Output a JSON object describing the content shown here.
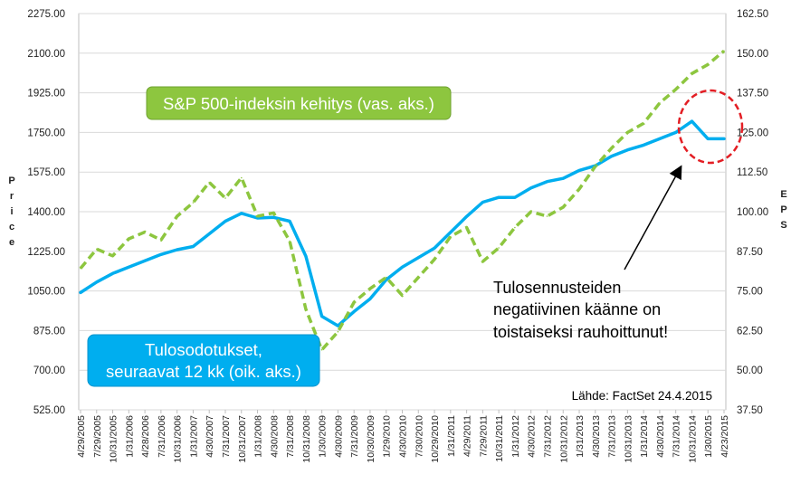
{
  "chart_data": {
    "type": "line",
    "title": "",
    "ylabel_left": "Price",
    "ylabel_right": "EPS",
    "ylim_left": [
      525,
      2275
    ],
    "ylim_right": [
      37.5,
      162.5
    ],
    "yticks_left": [
      "525.00",
      "700.00",
      "875.00",
      "1050.00",
      "1225.00",
      "1400.00",
      "1575.00",
      "1750.00",
      "1925.00",
      "2100.00",
      "2275.00"
    ],
    "yticks_right": [
      "37.50",
      "50.00",
      "62.50",
      "75.00",
      "87.50",
      "100.00",
      "112.50",
      "125.00",
      "137.50",
      "150.00",
      "162.50"
    ],
    "categories": [
      "4/29/2005",
      "7/29/2005",
      "10/31/2005",
      "1/31/2006",
      "4/28/2006",
      "7/31/2006",
      "10/31/2006",
      "1/31/2007",
      "4/30/2007",
      "7/31/2007",
      "10/31/2007",
      "1/31/2008",
      "4/30/2008",
      "7/31/2008",
      "10/31/2008",
      "1/30/2009",
      "4/30/2009",
      "7/31/2009",
      "10/30/2009",
      "1/29/2010",
      "4/30/2010",
      "7/30/2010",
      "10/29/2010",
      "1/31/2011",
      "4/29/2011",
      "7/29/2011",
      "10/31/2011",
      "1/31/2012",
      "4/30/2012",
      "7/31/2012",
      "10/31/2012",
      "1/31/2013",
      "4/30/2013",
      "7/31/2013",
      "10/31/2013",
      "1/31/2014",
      "4/30/2014",
      "7/31/2014",
      "10/31/2014",
      "1/30/2015",
      "4/23/2015"
    ],
    "series": [
      {
        "name": "S&P 500-indeksin kehitys (vas. aks.)",
        "axis": "left",
        "color": "#8dc63f",
        "style": "dashed",
        "values": [
          1150,
          1235,
          1205,
          1280,
          1310,
          1275,
          1380,
          1440,
          1530,
          1460,
          1550,
          1380,
          1395,
          1270,
          970,
          790,
          870,
          1000,
          1060,
          1110,
          1030,
          1110,
          1190,
          1290,
          1330,
          1180,
          1240,
          1330,
          1400,
          1380,
          1420,
          1500,
          1600,
          1680,
          1750,
          1790,
          1880,
          1940,
          2010,
          2050,
          2110
        ]
      },
      {
        "name": "Tulosodotukset, seuraavat 12 kk (oik. aks.)",
        "axis": "right",
        "color": "#00aeef",
        "style": "solid",
        "values": [
          74.5,
          77.8,
          80.5,
          82.5,
          84.5,
          86.5,
          88.0,
          89.0,
          93.0,
          97.0,
          99.5,
          98.0,
          98.2,
          97.0,
          86.0,
          67.0,
          64.0,
          68.5,
          72.5,
          78.5,
          82.5,
          85.5,
          88.5,
          93.5,
          98.5,
          103.0,
          104.5,
          104.5,
          107.5,
          109.5,
          110.5,
          113.0,
          114.5,
          117.5,
          119.5,
          121.0,
          123.0,
          125.0,
          128.5,
          123.0,
          123.0
        ]
      }
    ],
    "annotations": {
      "sp500_box": "S&P 500-indeksin kehitys (vas. aks.)",
      "eps_box_line1": "Tulosodotukset,",
      "eps_box_line2": "seuraavat 12 kk (oik. aks.)",
      "note_line1": "Tulosennusteiden",
      "note_line2": "negatiivinen käänne on",
      "note_line3": "toistaiseksi rauhoittunut!",
      "source": "Lähde: FactSet 24.4.2015"
    }
  }
}
